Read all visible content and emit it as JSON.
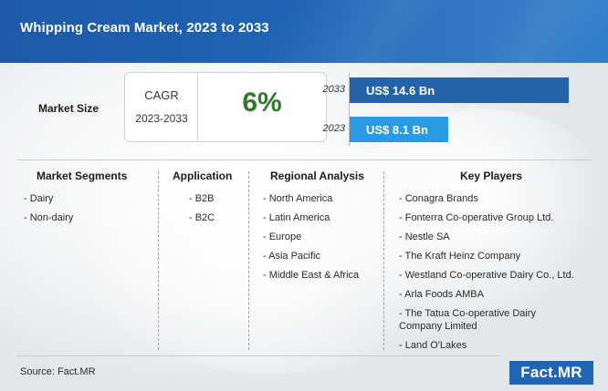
{
  "header": {
    "title": "Whipping Cream Market, 2023 to 2033"
  },
  "market_size": {
    "label": "Market Size",
    "cagr_title": "CAGR",
    "cagr_period": "2023-2033",
    "cagr_value": "6%",
    "bars": [
      {
        "year": "2033",
        "value_label": "US$ 14.6 Bn",
        "value": 14.6
      },
      {
        "year": "2023",
        "value_label": "US$ 8.1 Bn",
        "value": 8.1
      }
    ]
  },
  "columns": {
    "segments": {
      "heading": "Market Segments",
      "items": [
        "- Dairy",
        "- Non-dairy"
      ]
    },
    "application": {
      "heading": "Application",
      "items": [
        "- B2B",
        "- B2C"
      ]
    },
    "regional": {
      "heading": "Regional Analysis",
      "items": [
        "- North America",
        "- Latin America",
        "- Europe",
        "- Asia Pacific",
        "- Middle East & Africa"
      ]
    },
    "players": {
      "heading": "Key Players",
      "items": [
        "- Conagra Brands",
        "- Fonterra Co-operative Group Ltd.",
        "- Nestle SA",
        "- The Kraft Heinz Company",
        "- Westland Co-operative Dairy Co., Ltd.",
        "- Arla Foods AMBA",
        "- The Tatua Co-operative Dairy Company Limited",
        "- Land O'Lakes"
      ]
    }
  },
  "footer": {
    "source": "Source: Fact.MR",
    "logo": "Fact.MR"
  },
  "colors": {
    "header": "#1f66b6",
    "bar_2033": "#2463a8",
    "bar_2023": "#2a9be0",
    "cagr": "#2e7a28"
  }
}
